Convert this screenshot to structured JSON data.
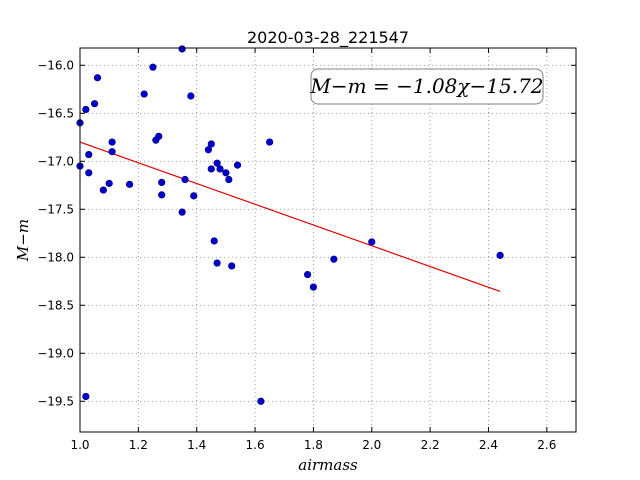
{
  "chart_data": {
    "type": "scatter",
    "title": "2020-03-28_221547",
    "xlabel": "airmass",
    "ylabel": "M−m",
    "xlim": [
      1.0,
      2.7
    ],
    "ylim": [
      -15.82,
      -19.82
    ],
    "y_inverted": true,
    "grid": true,
    "x_ticks": [
      1.0,
      1.2,
      1.4,
      1.6,
      1.8,
      2.0,
      2.2,
      2.4,
      2.6
    ],
    "y_ticks": [
      -16.0,
      -16.5,
      -17.0,
      -17.5,
      -18.0,
      -18.5,
      -19.0,
      -19.5
    ],
    "x_tick_labels": [
      "1.0",
      "1.2",
      "1.4",
      "1.6",
      "1.8",
      "2.0",
      "2.2",
      "2.4",
      "2.6"
    ],
    "y_tick_labels": [
      "−16.0",
      "−16.5",
      "−17.0",
      "−17.5",
      "−18.0",
      "−18.5",
      "−19.0",
      "−19.5"
    ],
    "points": [
      {
        "x": 1.0,
        "y": -16.6
      },
      {
        "x": 1.0,
        "y": -17.05
      },
      {
        "x": 1.02,
        "y": -16.46
      },
      {
        "x": 1.03,
        "y": -16.93
      },
      {
        "x": 1.03,
        "y": -17.12
      },
      {
        "x": 1.05,
        "y": -16.4
      },
      {
        "x": 1.06,
        "y": -16.13
      },
      {
        "x": 1.08,
        "y": -17.3
      },
      {
        "x": 1.1,
        "y": -17.23
      },
      {
        "x": 1.11,
        "y": -16.8
      },
      {
        "x": 1.11,
        "y": -16.9
      },
      {
        "x": 1.17,
        "y": -17.24
      },
      {
        "x": 1.22,
        "y": -16.3
      },
      {
        "x": 1.25,
        "y": -16.02
      },
      {
        "x": 1.26,
        "y": -16.78
      },
      {
        "x": 1.27,
        "y": -16.74
      },
      {
        "x": 1.28,
        "y": -17.22
      },
      {
        "x": 1.28,
        "y": -17.35
      },
      {
        "x": 1.35,
        "y": -15.83
      },
      {
        "x": 1.35,
        "y": -17.53
      },
      {
        "x": 1.36,
        "y": -17.19
      },
      {
        "x": 1.38,
        "y": -16.32
      },
      {
        "x": 1.39,
        "y": -17.36
      },
      {
        "x": 1.44,
        "y": -16.88
      },
      {
        "x": 1.45,
        "y": -16.82
      },
      {
        "x": 1.45,
        "y": -17.08
      },
      {
        "x": 1.46,
        "y": -17.83
      },
      {
        "x": 1.47,
        "y": -17.02
      },
      {
        "x": 1.47,
        "y": -18.06
      },
      {
        "x": 1.48,
        "y": -17.08
      },
      {
        "x": 1.5,
        "y": -17.12
      },
      {
        "x": 1.51,
        "y": -17.19
      },
      {
        "x": 1.52,
        "y": -18.09
      },
      {
        "x": 1.54,
        "y": -17.04
      },
      {
        "x": 1.62,
        "y": -19.5
      },
      {
        "x": 1.65,
        "y": -16.8
      },
      {
        "x": 1.78,
        "y": -18.18
      },
      {
        "x": 1.8,
        "y": -18.31
      },
      {
        "x": 1.87,
        "y": -18.02
      },
      {
        "x": 2.0,
        "y": -17.84
      },
      {
        "x": 2.44,
        "y": -17.98
      },
      {
        "x": 1.02,
        "y": -19.45
      }
    ],
    "fit_line": {
      "slope": -1.08,
      "intercept": -15.72,
      "x_range": [
        1.0,
        2.44
      ],
      "label": "M−m = −1.08χ−15.72"
    },
    "colors": {
      "points": "#0000cc",
      "fit_line": "#dd0000",
      "grid": "#888888"
    }
  }
}
